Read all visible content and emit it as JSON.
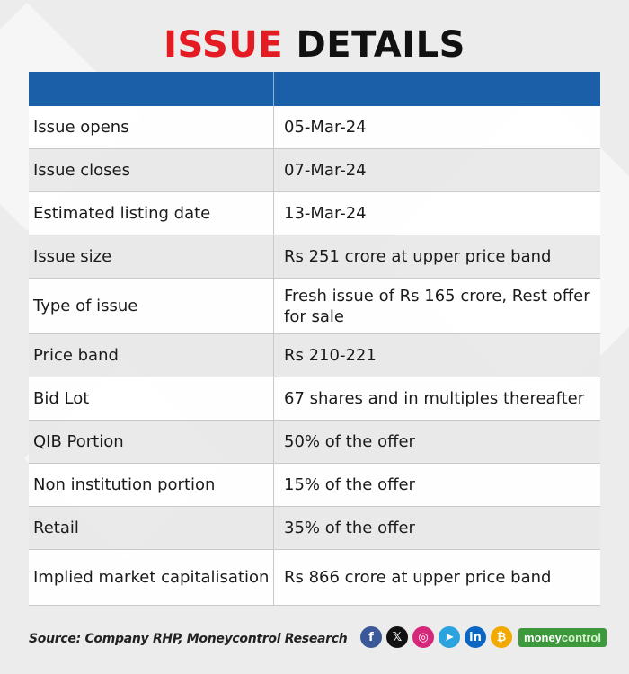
{
  "title": {
    "part1": "ISSUE",
    "part2": "DETAILS"
  },
  "table": {
    "rows": [
      {
        "label": "Issue opens",
        "value": "05-Mar-24"
      },
      {
        "label": "Issue closes",
        "value": "07-Mar-24"
      },
      {
        "label": "Estimated listing date",
        "value": "13-Mar-24"
      },
      {
        "label": "Issue size",
        "value": "Rs 251 crore at upper price band"
      },
      {
        "label": "Type of issue",
        "value": "Fresh issue of Rs 165 crore, Rest offer for sale"
      },
      {
        "label": "Price band",
        "value": "Rs 210-221"
      },
      {
        "label": "Bid Lot",
        "value": "67 shares and in multiples thereafter"
      },
      {
        "label": "QIB Portion",
        "value": "50% of the offer"
      },
      {
        "label": "Non institution portion",
        "value": "15% of the offer"
      },
      {
        "label": "Retail",
        "value": "35% of the offer"
      },
      {
        "label": "Implied market capitalisation",
        "value": "Rs 866 crore at upper price band"
      }
    ]
  },
  "footer": {
    "source": "Source: Company RHP, Moneycontrol Research",
    "socials": [
      {
        "icon": "facebook-icon",
        "glyph": "f",
        "color": "#3b5998"
      },
      {
        "icon": "x-icon",
        "glyph": "𝕏",
        "color": "#111111"
      },
      {
        "icon": "instagram-icon",
        "glyph": "◎",
        "color": "#d6287a"
      },
      {
        "icon": "telegram-icon",
        "glyph": "➤",
        "color": "#2aa3df"
      },
      {
        "icon": "linkedin-icon",
        "glyph": "in",
        "color": "#0a66c2"
      },
      {
        "icon": "crypto-icon",
        "glyph": "₿",
        "color": "#f2a900"
      }
    ],
    "brand": {
      "part1": "money",
      "part2": "control"
    }
  },
  "colors": {
    "title_accent": "#e31b23",
    "header_bar": "#1a5fa8",
    "brand_green": "#3c9a3c"
  }
}
